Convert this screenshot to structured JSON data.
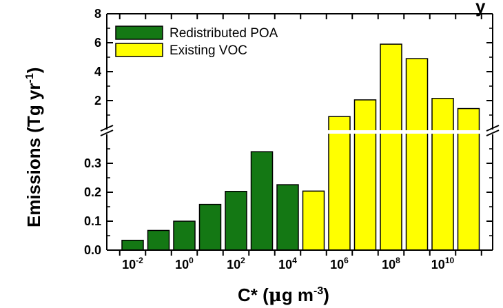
{
  "chart_data": {
    "type": "bar",
    "title": "",
    "title_fragment": "y",
    "xlabel": "C* (μg m⁻³)",
    "ylabel": "Emissions (Tg yr⁻¹)",
    "categories": [
      "1e-2",
      "1e-1",
      "1e0",
      "1e1",
      "1e2",
      "1e3",
      "1e4",
      "1e5",
      "1e6",
      "1e7",
      "1e8",
      "1e9",
      "1e10",
      "1e11"
    ],
    "x_tick_labels": [
      "10⁻²",
      "10⁰",
      "10²",
      "10⁴",
      "10⁶",
      "10⁸",
      "10¹⁰"
    ],
    "broken_y_axis": true,
    "lower_ylim": [
      0,
      0.4
    ],
    "upper_ylim": [
      0,
      8
    ],
    "lower_yticks": [
      "0.0",
      "0.1",
      "0.2",
      "0.3"
    ],
    "upper_yticks": [
      "2",
      "4",
      "6",
      "8"
    ],
    "series": [
      {
        "name": "Redistributed POA",
        "color": "#147814",
        "values": [
          0.034,
          0.068,
          0.1,
          0.158,
          0.203,
          0.34,
          0.226,
          null,
          null,
          null,
          null,
          null,
          null,
          null
        ]
      },
      {
        "name": "Existing VOC",
        "color": "#ffff00",
        "values": [
          null,
          null,
          null,
          null,
          null,
          null,
          null,
          0.204,
          0.9,
          2.05,
          5.9,
          4.9,
          2.15,
          1.45
        ]
      }
    ],
    "legend_position": "top-left",
    "grid": false
  }
}
